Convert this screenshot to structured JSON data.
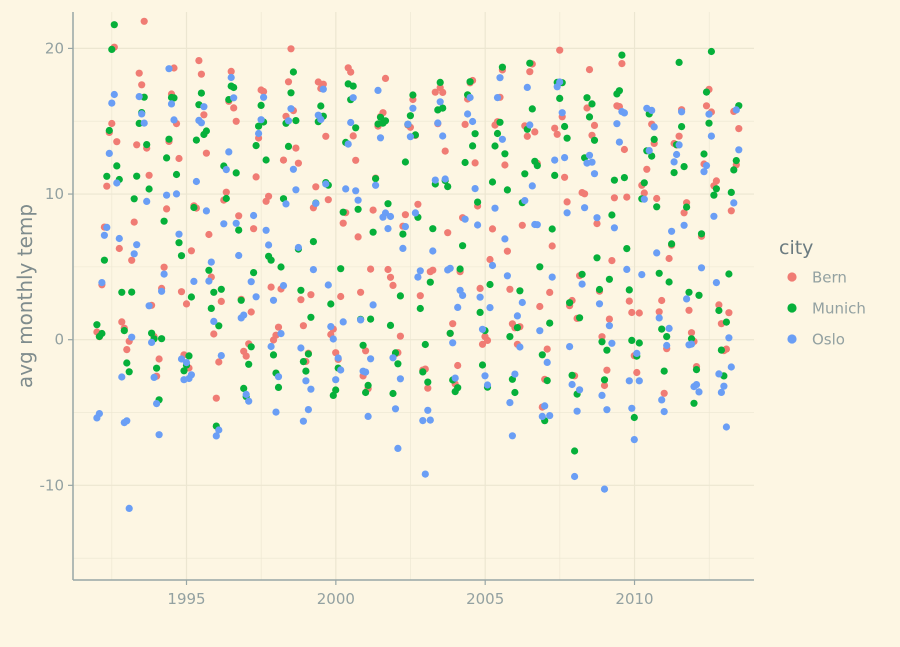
{
  "chart_data": {
    "type": "scatter",
    "title": "",
    "xlabel": "",
    "ylabel": "avg monthly temp",
    "x_ticks": [
      1995,
      2000,
      2005,
      2010
    ],
    "y_ticks": [
      -10,
      0,
      10,
      20
    ],
    "xlim": [
      1991.2,
      2014.0
    ],
    "ylim": [
      -16.5,
      22.5
    ],
    "grid": true,
    "legend": {
      "title": "city",
      "position": "right"
    },
    "colors": {
      "Bern": "#f07c74",
      "Munich": "#06b03a",
      "Oslo": "#6a9ef5",
      "background": "#fdf6e3",
      "grid": "#ece6d1",
      "axis_text": "#93a1a1"
    },
    "series": [
      {
        "name": "Bern",
        "monthly_mean": [
          -1.5,
          -0.5,
          3.5,
          7.5,
          12.0,
          15.5,
          17.5,
          17.0,
          13.5,
          9.0,
          3.5,
          0.0
        ],
        "noise": 1.8
      },
      {
        "name": "Munich",
        "monthly_mean": [
          -2.5,
          -1.5,
          3.0,
          7.5,
          12.5,
          15.5,
          17.0,
          16.5,
          13.0,
          8.5,
          3.0,
          -1.0
        ],
        "noise": 1.8
      },
      {
        "name": "Oslo",
        "monthly_mean": [
          -5.0,
          -4.5,
          -1.0,
          4.0,
          10.0,
          14.5,
          16.5,
          15.0,
          10.5,
          5.5,
          0.5,
          -3.5
        ],
        "noise": 2.3
      }
    ],
    "x_range": {
      "start": 1992.0,
      "end": 2013.5,
      "step": 0.0833
    }
  }
}
